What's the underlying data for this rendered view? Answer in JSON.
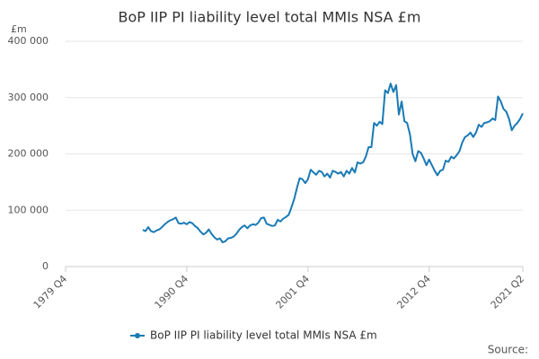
{
  "chart_data": {
    "type": "line",
    "title": "BoP IIP PI liability level total MMIs NSA £m",
    "y_unit": "£m",
    "source": "Source:",
    "categories": [
      "1979 Q4",
      null,
      null,
      null,
      null,
      null,
      null,
      null,
      null,
      null,
      null,
      null,
      null,
      null,
      null,
      null,
      null,
      null,
      null,
      null,
      null,
      null,
      null,
      null,
      null,
      null,
      null,
      null,
      null,
      null,
      null,
      null,
      null,
      null,
      null,
      null,
      null,
      null,
      null,
      null,
      null,
      null,
      null,
      null,
      "1990 Q4",
      null,
      null,
      null,
      null,
      null,
      null,
      null,
      null,
      null,
      null,
      null,
      null,
      null,
      null,
      null,
      null,
      null,
      null,
      null,
      null,
      null,
      null,
      null,
      null,
      null,
      null,
      null,
      null,
      null,
      null,
      null,
      null,
      null,
      null,
      null,
      null,
      null,
      null,
      null,
      null,
      null,
      null,
      null,
      "2001 Q4",
      null,
      null,
      null,
      null,
      null,
      null,
      null,
      null,
      null,
      null,
      null,
      null,
      null,
      null,
      null,
      null,
      null,
      null,
      null,
      null,
      null,
      null,
      null,
      null,
      null,
      null,
      null,
      null,
      null,
      null,
      null,
      null,
      null,
      null,
      null,
      null,
      null,
      null,
      null,
      null,
      null,
      null,
      null,
      "2012 Q4",
      null,
      null,
      null,
      null,
      null,
      null,
      null,
      null,
      null,
      null,
      null,
      null,
      null,
      null,
      null,
      null,
      null,
      null,
      null,
      null,
      null,
      null,
      null,
      null,
      null,
      null,
      null,
      null,
      null,
      null,
      null,
      null,
      null,
      "2021 Q2"
    ],
    "series": [
      {
        "name": "BoP IIP PI liability level total MMIs NSA £m",
        "color": "#1a7ab5",
        "values": [
          null,
          null,
          null,
          null,
          null,
          null,
          null,
          null,
          null,
          null,
          null,
          null,
          null,
          null,
          null,
          null,
          null,
          null,
          null,
          null,
          null,
          null,
          null,
          null,
          null,
          null,
          null,
          null,
          65000,
          63000,
          70000,
          63000,
          61000,
          64000,
          66000,
          70000,
          75000,
          79000,
          82000,
          84000,
          87000,
          77000,
          76000,
          78000,
          75000,
          79000,
          77000,
          72000,
          68000,
          62000,
          57000,
          60000,
          66000,
          58000,
          52000,
          48000,
          50000,
          43000,
          45000,
          50000,
          51000,
          53000,
          58000,
          65000,
          70000,
          73000,
          68000,
          73000,
          75000,
          74000,
          78000,
          86000,
          87000,
          76000,
          74000,
          72000,
          73000,
          83000,
          80000,
          85000,
          88000,
          92000,
          105000,
          120000,
          140000,
          157000,
          155000,
          148000,
          155000,
          172000,
          167000,
          163000,
          170000,
          168000,
          160000,
          165000,
          158000,
          170000,
          168000,
          165000,
          168000,
          160000,
          170000,
          165000,
          175000,
          167000,
          185000,
          183000,
          185000,
          195000,
          212000,
          212000,
          255000,
          250000,
          257000,
          253000,
          313000,
          308000,
          325000,
          310000,
          322000,
          270000,
          293000,
          258000,
          255000,
          235000,
          200000,
          187000,
          205000,
          202000,
          192000,
          180000,
          190000,
          180000,
          170000,
          162000,
          170000,
          172000,
          188000,
          186000,
          195000,
          192000,
          198000,
          205000,
          220000,
          230000,
          233000,
          238000,
          230000,
          238000,
          252000,
          248000,
          255000,
          256000,
          258000,
          263000,
          260000,
          302000,
          293000,
          280000,
          275000,
          262000,
          242000,
          250000,
          255000,
          262000,
          272000
        ]
      }
    ],
    "ylim": [
      0,
      400000
    ],
    "yticks": [
      0,
      {
        "value": 100000,
        "label": "100 000"
      },
      {
        "value": 200000,
        "label": "200 000"
      },
      {
        "value": 300000,
        "label": "300 000"
      },
      {
        "value": 400000,
        "label": "400 000"
      }
    ],
    "grid": true,
    "legend": "bottom"
  }
}
